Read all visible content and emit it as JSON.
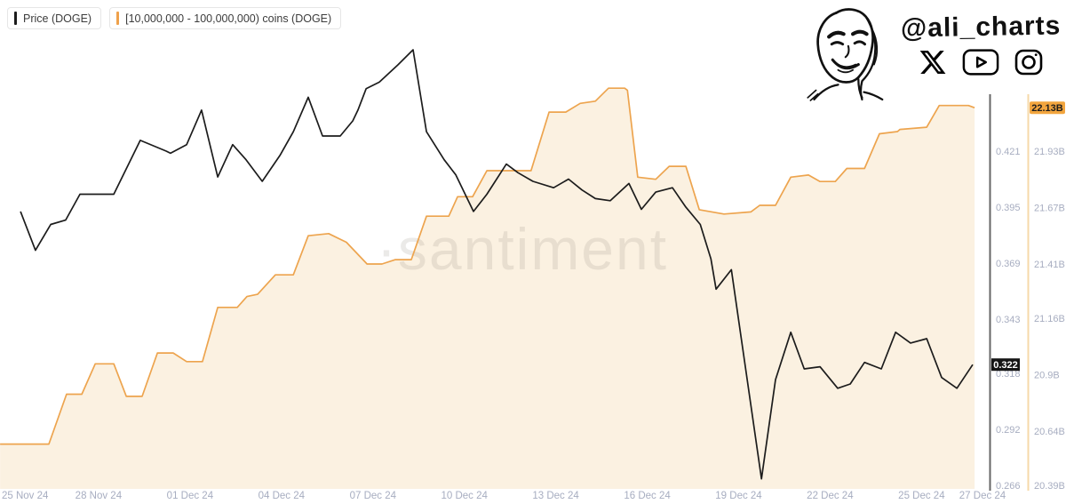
{
  "legend": [
    {
      "label": "Price (DOGE)",
      "color": "#1c1c1c"
    },
    {
      "label": "[10,000,000 - 100,000,000) coins (DOGE)",
      "color": "#efa14b"
    }
  ],
  "branding": {
    "handle": "@ali_charts",
    "icons": [
      "x-logo",
      "youtube-logo",
      "instagram-logo"
    ],
    "portrait": "hand-drawn-face-sketch"
  },
  "watermark": "·santiment",
  "colors": {
    "price_line": "#1c1c1c",
    "whales_line": "#eda44e",
    "whales_fill": "#fbf1e1",
    "price_axis_line": "#666666",
    "supply_axis_line": "#f6d9a9",
    "tick_text": "#a7adc0",
    "price_badge_bg": "#151515",
    "price_badge_text": "#ffffff",
    "supply_badge_bg": "#f2a53e",
    "supply_badge_text": "#1d1d1d"
  },
  "chart_data": {
    "type": "line",
    "title": "",
    "x_axis": {
      "start_label": "25 Nov 24",
      "end_label": "27 Dec 24",
      "span_days": 32,
      "ticks": [
        {
          "day": 0,
          "label": "25 Nov 24"
        },
        {
          "day": 3,
          "label": "28 Nov 24"
        },
        {
          "day": 6,
          "label": "01 Dec 24"
        },
        {
          "day": 9,
          "label": "04 Dec 24"
        },
        {
          "day": 12,
          "label": "07 Dec 24"
        },
        {
          "day": 15,
          "label": "10 Dec 24"
        },
        {
          "day": 18,
          "label": "13 Dec 24"
        },
        {
          "day": 21,
          "label": "16 Dec 24"
        },
        {
          "day": 24,
          "label": "19 Dec 24"
        },
        {
          "day": 27,
          "label": "22 Dec 24"
        },
        {
          "day": 30,
          "label": "25 Dec 24"
        },
        {
          "day": 32,
          "label": "27 Dec 24"
        }
      ]
    },
    "price_axis": {
      "side": "right-inner",
      "tick_values": [
        0.421,
        0.395,
        0.369,
        0.343,
        0.318,
        0.292,
        0.266
      ],
      "tick_labels": [
        "0.421",
        "0.395",
        "0.369",
        "0.343",
        "0.318",
        "0.292",
        "0.266"
      ],
      "current": {
        "value": 0.322,
        "label": "0.322"
      }
    },
    "supply_axis": {
      "side": "right-outer",
      "tick_values": [
        21.93,
        21.67,
        21.41,
        21.16,
        20.9,
        20.64,
        20.39
      ],
      "tick_labels": [
        "21.93B",
        "21.67B",
        "21.41B",
        "21.16B",
        "20.9B",
        "20.64B",
        "20.39B"
      ],
      "current": {
        "value": 22.13,
        "label": "22.13B"
      }
    },
    "series": [
      {
        "name": "Price (DOGE)",
        "axis": "price",
        "color": "#1c1c1c",
        "points": [
          [
            0.44,
            0.393
          ],
          [
            0.93,
            0.375
          ],
          [
            1.43,
            0.387
          ],
          [
            1.92,
            0.389
          ],
          [
            2.39,
            0.401
          ],
          [
            3.5,
            0.401
          ],
          [
            4.37,
            0.426
          ],
          [
            5.22,
            0.421
          ],
          [
            5.36,
            0.42
          ],
          [
            5.89,
            0.424
          ],
          [
            6.38,
            0.44
          ],
          [
            6.91,
            0.409
          ],
          [
            7.4,
            0.424
          ],
          [
            7.84,
            0.417
          ],
          [
            8.37,
            0.407
          ],
          [
            8.95,
            0.419
          ],
          [
            9.39,
            0.43
          ],
          [
            9.88,
            0.446
          ],
          [
            10.35,
            0.428
          ],
          [
            10.93,
            0.428
          ],
          [
            11.34,
            0.435
          ],
          [
            11.51,
            0.44
          ],
          [
            11.78,
            0.45
          ],
          [
            12.21,
            0.453
          ],
          [
            12.82,
            0.461
          ],
          [
            13.32,
            0.468
          ],
          [
            13.76,
            0.43
          ],
          [
            14.34,
            0.417
          ],
          [
            14.72,
            0.41
          ],
          [
            15.3,
            0.393
          ],
          [
            15.74,
            0.401
          ],
          [
            16.38,
            0.415
          ],
          [
            16.76,
            0.411
          ],
          [
            17.25,
            0.407
          ],
          [
            17.93,
            0.404
          ],
          [
            18.42,
            0.408
          ],
          [
            18.86,
            0.403
          ],
          [
            19.3,
            0.399
          ],
          [
            19.79,
            0.398
          ],
          [
            20.4,
            0.406
          ],
          [
            20.81,
            0.394
          ],
          [
            21.28,
            0.402
          ],
          [
            21.83,
            0.404
          ],
          [
            22.27,
            0.395
          ],
          [
            22.74,
            0.387
          ],
          [
            23.09,
            0.371
          ],
          [
            23.26,
            0.357
          ],
          [
            23.76,
            0.366
          ],
          [
            24.75,
            0.269
          ],
          [
            25.21,
            0.315
          ],
          [
            25.71,
            0.337
          ],
          [
            26.15,
            0.32
          ],
          [
            26.67,
            0.321
          ],
          [
            27.25,
            0.311
          ],
          [
            27.66,
            0.313
          ],
          [
            28.13,
            0.323
          ],
          [
            28.68,
            0.32
          ],
          [
            29.15,
            0.337
          ],
          [
            29.64,
            0.332
          ],
          [
            30.17,
            0.334
          ],
          [
            30.66,
            0.316
          ],
          [
            31.16,
            0.311
          ],
          [
            31.68,
            0.322
          ]
        ]
      },
      {
        "name": "[10,000,000 - 100,000,000) coins (DOGE)",
        "axis": "supply",
        "color": "#eda44e",
        "fill": "#fbf1e1",
        "points": [
          [
            -0.23,
            20.58
          ],
          [
            1.37,
            20.58
          ],
          [
            1.95,
            20.81
          ],
          [
            2.45,
            20.81
          ],
          [
            2.89,
            20.95
          ],
          [
            3.5,
            20.95
          ],
          [
            3.91,
            20.8
          ],
          [
            4.43,
            20.8
          ],
          [
            4.93,
            21.0
          ],
          [
            5.45,
            21.0
          ],
          [
            5.89,
            20.96
          ],
          [
            6.41,
            20.96
          ],
          [
            6.91,
            21.21
          ],
          [
            7.55,
            21.21
          ],
          [
            7.87,
            21.26
          ],
          [
            8.22,
            21.27
          ],
          [
            8.8,
            21.36
          ],
          [
            9.39,
            21.36
          ],
          [
            9.88,
            21.54
          ],
          [
            10.55,
            21.55
          ],
          [
            11.13,
            21.51
          ],
          [
            11.81,
            21.41
          ],
          [
            12.3,
            21.41
          ],
          [
            12.74,
            21.43
          ],
          [
            13.26,
            21.43
          ],
          [
            13.76,
            21.63
          ],
          [
            14.49,
            21.63
          ],
          [
            14.78,
            21.72
          ],
          [
            15.27,
            21.72
          ],
          [
            15.74,
            21.84
          ],
          [
            17.19,
            21.84
          ],
          [
            17.78,
            22.11
          ],
          [
            18.33,
            22.11
          ],
          [
            18.8,
            22.15
          ],
          [
            19.3,
            22.16
          ],
          [
            19.73,
            22.22
          ],
          [
            20.26,
            22.22
          ],
          [
            20.35,
            22.21
          ],
          [
            20.69,
            21.81
          ],
          [
            21.28,
            21.8
          ],
          [
            21.72,
            21.86
          ],
          [
            22.27,
            21.86
          ],
          [
            22.71,
            21.66
          ],
          [
            23.52,
            21.64
          ],
          [
            24.4,
            21.65
          ],
          [
            24.69,
            21.68
          ],
          [
            25.21,
            21.68
          ],
          [
            25.71,
            21.81
          ],
          [
            26.29,
            21.82
          ],
          [
            26.67,
            21.79
          ],
          [
            27.17,
            21.79
          ],
          [
            27.55,
            21.85
          ],
          [
            28.13,
            21.85
          ],
          [
            28.62,
            22.01
          ],
          [
            29.21,
            22.02
          ],
          [
            29.29,
            22.03
          ],
          [
            30.17,
            22.04
          ],
          [
            30.58,
            22.14
          ],
          [
            31.54,
            22.14
          ],
          [
            31.74,
            22.13
          ]
        ]
      }
    ],
    "legend_position": "top-left",
    "grid": false
  }
}
